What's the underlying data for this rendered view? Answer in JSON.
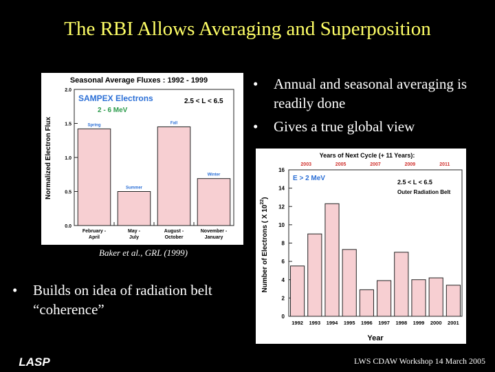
{
  "slide": {
    "title": "The RBI Allows Averaging and Superposition",
    "bullets_top": [
      "Annual and seasonal averaging is readily done",
      "Gives a true global view"
    ],
    "bullets_bottom": [
      "Builds on idea of radiation belt “coherence”"
    ],
    "caption": "Baker et al., GRL (1999)",
    "footer": "LWS CDAW Workshop 14 March 2005",
    "logo_text": "LASP",
    "bullet_glyph": "•",
    "colors": {
      "title": "#ffff66",
      "bar_fill": "#f7cfd2",
      "bar_stroke": "#222222",
      "blue_text": "#2b6fd6",
      "green_text": "#2a9a4a",
      "red_text": "#d0312d"
    }
  },
  "chart_data": [
    {
      "type": "bar",
      "title": "Seasonal Average Fluxes : 1992 - 1999",
      "inset": [
        "SAMPEX Electrons",
        "2 - 6 MeV"
      ],
      "lshell": "2.5 < L < 6.5",
      "ylabel": "Normalized Electron Flux",
      "xlabel": "",
      "ylim": [
        0,
        2.0
      ],
      "yticks": [
        "0.0",
        "0.5",
        "1.0",
        "1.5",
        "2.0"
      ],
      "categories": [
        "February - April",
        "May - July",
        "August - October",
        "November - January"
      ],
      "category_lines": [
        [
          "February -",
          "April"
        ],
        [
          "May -",
          "July"
        ],
        [
          "August -",
          "October"
        ],
        [
          "November -",
          "January"
        ]
      ],
      "values": [
        1.42,
        0.5,
        1.45,
        0.69
      ],
      "bar_labels": [
        "Spring",
        "Summer",
        "Fall",
        "Winter"
      ]
    },
    {
      "type": "bar",
      "title": "Years of Next Cycle (+ 11 Years):",
      "next_years": [
        "2003",
        "2005",
        "2007",
        "2009",
        "2011"
      ],
      "inset": "E > 2 MeV",
      "lshell": "2.5 < L < 6.5",
      "region": "Outer Radiation Belt",
      "ylabel": "Number of Electrons ( X 10",
      "ylabel_exp": "22",
      "ylabel_close": ")",
      "xlabel": "Year",
      "ylim": [
        0,
        16
      ],
      "yticks": [
        "0",
        "2",
        "4",
        "6",
        "8",
        "10",
        "12",
        "14",
        "16"
      ],
      "categories": [
        "1992",
        "1993",
        "1994",
        "1995",
        "1996",
        "1997",
        "1998",
        "1999",
        "2000",
        "2001"
      ],
      "values": [
        5.5,
        9.0,
        12.3,
        7.3,
        2.9,
        3.9,
        7.0,
        4.0,
        4.2,
        3.4
      ]
    }
  ]
}
